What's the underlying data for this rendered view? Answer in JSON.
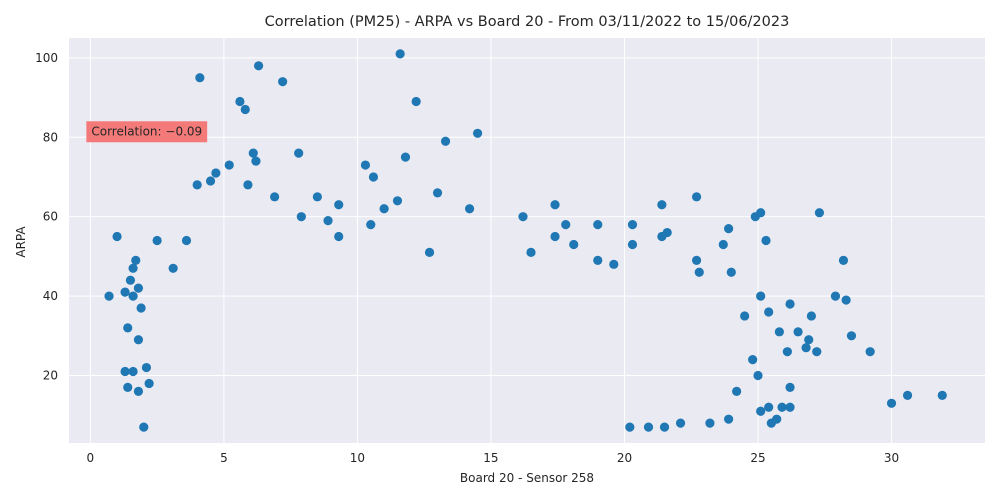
{
  "chart_data": {
    "type": "scatter",
    "title": "Correlation (PM25) - ARPA vs Board 20 - From 03/11/2022 to 15/06/2023",
    "xlabel": "Board 20 - Sensor 258",
    "ylabel": "ARPA",
    "xlim": [
      -0.8,
      33.5
    ],
    "ylim": [
      3.0,
      105.0
    ],
    "x_ticks": [
      0,
      5,
      10,
      15,
      20,
      25,
      30
    ],
    "y_ticks": [
      20,
      40,
      60,
      80,
      100
    ],
    "grid": true,
    "background": "#eaeaf2",
    "grid_color": "#ffffff",
    "point_color": "#1f77b4",
    "annotation": {
      "text": "Correlation: −0.09",
      "x": 0.0,
      "y": 80.0,
      "box_color": "#f47a7a"
    },
    "series": [
      {
        "points": [
          [
            11.6,
            101
          ],
          [
            6.3,
            98
          ],
          [
            4.1,
            95
          ],
          [
            7.2,
            94
          ],
          [
            12.2,
            89
          ],
          [
            5.6,
            89
          ],
          [
            5.8,
            87
          ],
          [
            14.5,
            81
          ],
          [
            13.3,
            79
          ],
          [
            7.8,
            76
          ],
          [
            6.1,
            76
          ],
          [
            11.8,
            75
          ],
          [
            6.2,
            74
          ],
          [
            10.3,
            73
          ],
          [
            5.2,
            73
          ],
          [
            4.7,
            71
          ],
          [
            10.6,
            70
          ],
          [
            4.5,
            69
          ],
          [
            4.0,
            68
          ],
          [
            5.9,
            68
          ],
          [
            13.0,
            66
          ],
          [
            8.5,
            65
          ],
          [
            22.7,
            65
          ],
          [
            6.9,
            65
          ],
          [
            11.5,
            64
          ],
          [
            21.4,
            63
          ],
          [
            17.4,
            63
          ],
          [
            9.3,
            63
          ],
          [
            11.0,
            62
          ],
          [
            14.2,
            62
          ],
          [
            27.3,
            61
          ],
          [
            25.1,
            61
          ],
          [
            7.9,
            60
          ],
          [
            16.2,
            60
          ],
          [
            24.9,
            60
          ],
          [
            8.9,
            59
          ],
          [
            19.0,
            58
          ],
          [
            20.3,
            58
          ],
          [
            17.8,
            58
          ],
          [
            21.6,
            56
          ],
          [
            23.9,
            57
          ],
          [
            10.5,
            58
          ],
          [
            21.4,
            55
          ],
          [
            9.3,
            55
          ],
          [
            25.3,
            54
          ],
          [
            1.0,
            55
          ],
          [
            17.4,
            55
          ],
          [
            3.6,
            54
          ],
          [
            2.5,
            54
          ],
          [
            20.3,
            53
          ],
          [
            18.1,
            53
          ],
          [
            23.7,
            53
          ],
          [
            16.5,
            51
          ],
          [
            12.7,
            51
          ],
          [
            22.7,
            49
          ],
          [
            28.2,
            49
          ],
          [
            1.7,
            49
          ],
          [
            1.6,
            47
          ],
          [
            3.1,
            47
          ],
          [
            19.0,
            49
          ],
          [
            19.6,
            48
          ],
          [
            22.8,
            46
          ],
          [
            24.0,
            46
          ],
          [
            1.5,
            44
          ],
          [
            0.7,
            40
          ],
          [
            1.3,
            41
          ],
          [
            1.6,
            40
          ],
          [
            1.8,
            42
          ],
          [
            27.9,
            40
          ],
          [
            28.3,
            39
          ],
          [
            26.2,
            38
          ],
          [
            25.1,
            40
          ],
          [
            1.9,
            37
          ],
          [
            25.4,
            36
          ],
          [
            24.5,
            35
          ],
          [
            1.4,
            32
          ],
          [
            1.8,
            29
          ],
          [
            27.0,
            35
          ],
          [
            26.5,
            31
          ],
          [
            28.5,
            30
          ],
          [
            25.8,
            31
          ],
          [
            26.9,
            29
          ],
          [
            29.2,
            26
          ],
          [
            26.8,
            27
          ],
          [
            26.1,
            26
          ],
          [
            27.2,
            26
          ],
          [
            24.8,
            24
          ],
          [
            1.3,
            21
          ],
          [
            1.6,
            21
          ],
          [
            2.1,
            22
          ],
          [
            25.0,
            20
          ],
          [
            26.2,
            17
          ],
          [
            1.4,
            17
          ],
          [
            1.8,
            16
          ],
          [
            2.2,
            18
          ],
          [
            30.0,
            13
          ],
          [
            30.6,
            15
          ],
          [
            31.9,
            15
          ],
          [
            24.2,
            16
          ],
          [
            25.4,
            12
          ],
          [
            25.9,
            12
          ],
          [
            25.1,
            11
          ],
          [
            26.2,
            12
          ],
          [
            25.7,
            9
          ],
          [
            25.5,
            8
          ],
          [
            2.0,
            7
          ],
          [
            20.2,
            7
          ],
          [
            20.9,
            7
          ],
          [
            21.5,
            7
          ],
          [
            22.1,
            8
          ],
          [
            23.2,
            8
          ],
          [
            23.9,
            9
          ]
        ]
      }
    ]
  }
}
